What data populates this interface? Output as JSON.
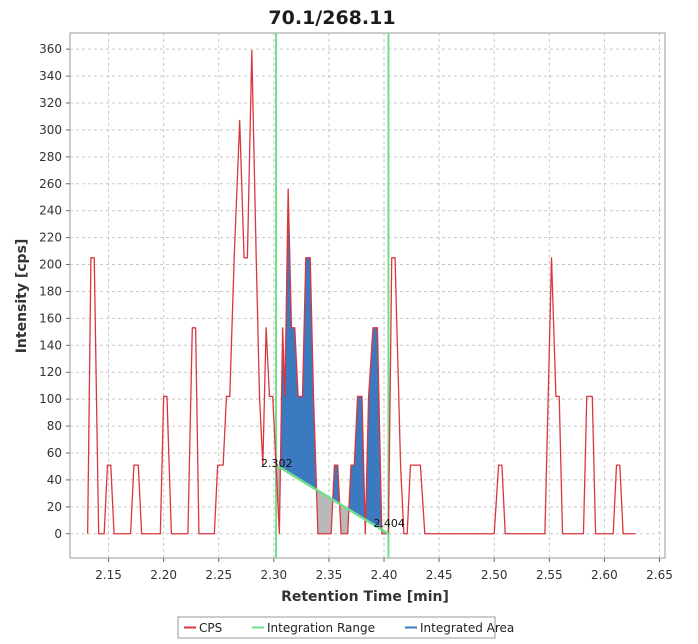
{
  "chart_data": {
    "type": "line",
    "title": "70.1/268.11",
    "xlabel": "Retention Time [min]",
    "ylabel": "Intensity [cps]",
    "xlim": [
      2.115,
      2.655
    ],
    "ylim": [
      -18,
      372
    ],
    "x_ticks": [
      "2.15",
      "2.20",
      "2.25",
      "2.30",
      "2.35",
      "2.40",
      "2.45",
      "2.50",
      "2.55",
      "2.60",
      "2.65"
    ],
    "y_ticks": [
      "0",
      "20",
      "40",
      "60",
      "80",
      "100",
      "120",
      "140",
      "160",
      "180",
      "200",
      "220",
      "240",
      "260",
      "280",
      "300",
      "320",
      "340",
      "360"
    ],
    "grid": true,
    "legend_position": "bottom",
    "series": [
      {
        "name": "CPS",
        "color": "#d9363e",
        "points": [
          [
            2.131,
            0
          ],
          [
            2.134,
            205
          ],
          [
            2.137,
            205
          ],
          [
            2.141,
            0
          ],
          [
            2.146,
            0
          ],
          [
            2.149,
            51
          ],
          [
            2.152,
            51
          ],
          [
            2.155,
            0
          ],
          [
            2.17,
            0
          ],
          [
            2.173,
            51
          ],
          [
            2.177,
            51
          ],
          [
            2.18,
            0
          ],
          [
            2.197,
            0
          ],
          [
            2.2,
            102
          ],
          [
            2.203,
            102
          ],
          [
            2.207,
            0
          ],
          [
            2.222,
            0
          ],
          [
            2.226,
            153
          ],
          [
            2.229,
            153
          ],
          [
            2.232,
            0
          ],
          [
            2.246,
            0
          ],
          [
            2.249,
            51
          ],
          [
            2.254,
            51
          ],
          [
            2.257,
            102
          ],
          [
            2.26,
            102
          ],
          [
            2.264,
            205
          ],
          [
            2.269,
            307
          ],
          [
            2.273,
            205
          ],
          [
            2.276,
            205
          ],
          [
            2.28,
            359
          ],
          [
            2.284,
            205
          ],
          [
            2.287,
            102
          ],
          [
            2.29,
            51
          ],
          [
            2.293,
            153
          ],
          [
            2.296,
            102
          ],
          [
            2.299,
            102
          ],
          [
            2.302,
            51
          ],
          [
            2.305,
            0
          ],
          [
            2.308,
            153
          ],
          [
            2.31,
            102
          ],
          [
            2.313,
            256
          ],
          [
            2.316,
            153
          ],
          [
            2.319,
            153
          ],
          [
            2.322,
            102
          ],
          [
            2.326,
            102
          ],
          [
            2.329,
            205
          ],
          [
            2.333,
            205
          ],
          [
            2.336,
            102
          ],
          [
            2.34,
            0
          ],
          [
            2.344,
            0
          ],
          [
            2.352,
            0
          ],
          [
            2.355,
            51
          ],
          [
            2.358,
            51
          ],
          [
            2.361,
            0
          ],
          [
            2.364,
            0
          ],
          [
            2.367,
            0
          ],
          [
            2.37,
            51
          ],
          [
            2.373,
            51
          ],
          [
            2.376,
            102
          ],
          [
            2.38,
            102
          ],
          [
            2.383,
            0
          ],
          [
            2.386,
            102
          ],
          [
            2.39,
            153
          ],
          [
            2.394,
            153
          ],
          [
            2.398,
            0
          ],
          [
            2.401,
            0
          ],
          [
            2.404,
            0
          ],
          [
            2.407,
            205
          ],
          [
            2.41,
            205
          ],
          [
            2.415,
            51
          ],
          [
            2.418,
            0
          ],
          [
            2.421,
            0
          ],
          [
            2.424,
            51
          ],
          [
            2.428,
            51
          ],
          [
            2.433,
            51
          ],
          [
            2.437,
            0
          ],
          [
            2.5,
            0
          ],
          [
            2.504,
            51
          ],
          [
            2.507,
            51
          ],
          [
            2.51,
            0
          ],
          [
            2.546,
            0
          ],
          [
            2.549,
            102
          ],
          [
            2.552,
            205
          ],
          [
            2.556,
            102
          ],
          [
            2.559,
            102
          ],
          [
            2.562,
            0
          ],
          [
            2.581,
            0
          ],
          [
            2.584,
            102
          ],
          [
            2.589,
            102
          ],
          [
            2.592,
            0
          ],
          [
            2.608,
            0
          ],
          [
            2.611,
            51
          ],
          [
            2.614,
            51
          ],
          [
            2.617,
            0
          ],
          [
            2.628,
            0
          ]
        ]
      }
    ],
    "integration_range": {
      "name": "Integration Range",
      "color": "#6fe08a",
      "start": 2.302,
      "end": 2.404,
      "start_label": "2.302",
      "end_label": "2.404",
      "baseline_start_y": 51,
      "baseline_end_y": 0
    },
    "integrated_area": {
      "name": "Integrated Area",
      "color": "#3b79c0",
      "below_baseline_color": "#b9b9b9"
    }
  },
  "legend": {
    "items": [
      {
        "label": "CPS",
        "color": "#d9363e",
        "type": "line"
      },
      {
        "label": "Integration Range",
        "color": "#6fe08a",
        "type": "line"
      },
      {
        "label": "Integrated Area",
        "color": "#3b79c0",
        "type": "line"
      }
    ]
  }
}
